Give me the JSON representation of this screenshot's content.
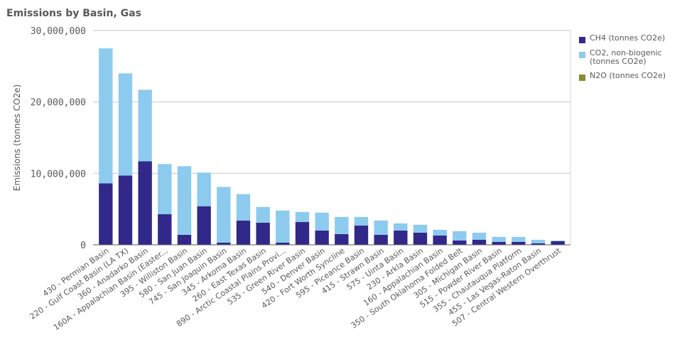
{
  "chart_data": {
    "type": "bar",
    "stacked": true,
    "title": "Emissions by Basin, Gas",
    "ylabel": "Emissions (tonnes CO2e)",
    "xlabel": "",
    "ylim": [
      0,
      30000000
    ],
    "yticks": [
      "0",
      "10,000,000",
      "20,000,000",
      "30,000,000"
    ],
    "ytick_values": [
      0,
      10000000,
      20000000,
      30000000
    ],
    "grid": true,
    "legend_position": "right",
    "categories": [
      "430 - Permian Basin",
      "220 - Gulf Coast Basin (LA TX)",
      "360 - Anadarko Basin",
      "160A - Appalachian Basin (Easter...",
      "395 - Williston Basin",
      "580 - San Juan Basin",
      "745 - San Joaquin Basin",
      "345 - Arkoma Basin",
      "260 - East Texas Basin",
      "890 - Arctic Coastal Plains Provi...",
      "535 - Green River Basin",
      "540 - Denver Basin",
      "420 - Fort Worth Syncline",
      "595 - Piceance Basin",
      "415 - Strawn Basin",
      "575 - Uinta Basin",
      "230 - Arkla Basin",
      "160 - Appalachian Basin",
      "350 - South Oklahoma Folded Belt",
      "305 - Michigan Basin",
      "515 - Powder River Basin",
      "355 - Chautauqua Platform",
      "455 - Las Vegas-Raton Basin",
      "507 - Central Western Overthrust"
    ],
    "series": [
      {
        "name": "CH4 (tonnes CO2e)",
        "color": "#31288a",
        "values": [
          8600000,
          9700000,
          11700000,
          4300000,
          1400000,
          5400000,
          300000,
          3400000,
          3100000,
          300000,
          3200000,
          2000000,
          1500000,
          2700000,
          1400000,
          2000000,
          1700000,
          1300000,
          600000,
          700000,
          400000,
          400000,
          200000,
          500000
        ]
      },
      {
        "name": "CO2, non-biogenic (tonnes CO2e)",
        "color": "#8ccbee",
        "values": [
          18900000,
          14300000,
          10000000,
          7000000,
          9600000,
          4700000,
          7800000,
          3700000,
          2200000,
          4500000,
          1400000,
          2500000,
          2400000,
          1200000,
          2000000,
          1000000,
          1100000,
          800000,
          1300000,
          1000000,
          700000,
          700000,
          500000,
          100000
        ]
      },
      {
        "name": "N2O (tonnes CO2e)",
        "color": "#8a8d2c",
        "values": [
          0,
          0,
          0,
          0,
          0,
          0,
          0,
          0,
          0,
          0,
          0,
          0,
          0,
          0,
          0,
          0,
          0,
          0,
          0,
          0,
          0,
          0,
          0,
          0
        ]
      }
    ]
  }
}
